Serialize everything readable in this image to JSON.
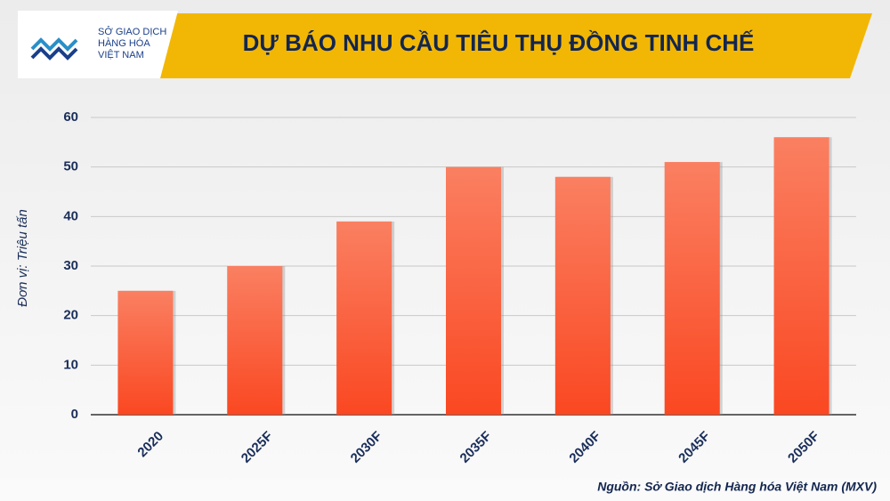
{
  "chart_data": {
    "type": "bar",
    "title": "DỰ BÁO NHU CẦU TIÊU THỤ ĐỒNG TINH CHẾ",
    "logo_text": [
      "SỞ GIAO DỊCH",
      "HÀNG HÓA",
      "VIỆT NAM"
    ],
    "y_label": "Đơn vị: Triệu tấn",
    "source": "Nguồn: Sở Giao dịch Hàng hóa Việt Nam (MXV)",
    "categories": [
      "2020",
      "2025F",
      "2030F",
      "2035F",
      "2040F",
      "2045F",
      "2050F"
    ],
    "values": [
      25,
      30,
      39,
      50,
      48,
      51,
      56
    ],
    "color": "#f9552d",
    "ylim": [
      0,
      60
    ],
    "yticks": [
      0,
      10,
      20,
      30,
      40,
      50,
      60
    ],
    "grid": true
  }
}
